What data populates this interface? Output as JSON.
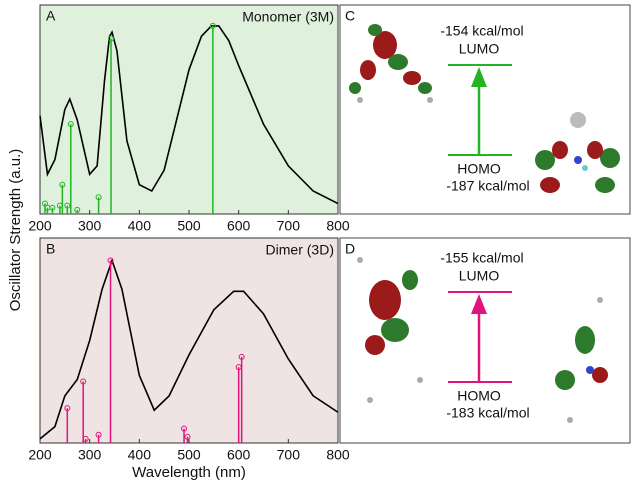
{
  "y_label": "Oscillator Strength (a.u.)",
  "chart_data": [
    {
      "type": "line",
      "label": "A",
      "title": "Monomer (3M)",
      "background": "#dff0dc",
      "xlim": [
        200,
        800
      ],
      "xticks": [
        200,
        300,
        400,
        500,
        600,
        700,
        800
      ],
      "ylim": [
        0,
        1
      ],
      "series": [
        {
          "style": "line",
          "color": "#000000",
          "x": [
            200,
            215,
            230,
            250,
            260,
            275,
            300,
            315,
            330,
            340,
            345,
            355,
            375,
            400,
            425,
            450,
            475,
            500,
            525,
            545,
            560,
            580,
            600,
            650,
            700,
            750,
            800
          ],
          "values": [
            0.47,
            0.19,
            0.26,
            0.5,
            0.55,
            0.45,
            0.19,
            0.23,
            0.64,
            0.85,
            0.87,
            0.78,
            0.35,
            0.14,
            0.11,
            0.21,
            0.45,
            0.69,
            0.85,
            0.9,
            0.9,
            0.83,
            0.71,
            0.43,
            0.23,
            0.11,
            0.05
          ]
        },
        {
          "style": "stem",
          "color": "#22b422",
          "x": [
            210,
            215,
            225,
            240,
            245,
            255,
            262,
            275,
            318,
            343,
            548
          ],
          "values": [
            0.05,
            0.03,
            0.03,
            0.04,
            0.14,
            0.04,
            0.43,
            0.02,
            0.08,
            0.84,
            0.9
          ]
        }
      ]
    },
    {
      "type": "line",
      "label": "B",
      "title": "Dimer (3D)",
      "background": "#f0e3e3",
      "xlabel": "Wavelength (nm)",
      "xlim": [
        200,
        800
      ],
      "xticks": [
        200,
        300,
        400,
        500,
        600,
        700,
        800
      ],
      "ylim": [
        0,
        1
      ],
      "series": [
        {
          "style": "line",
          "color": "#000000",
          "x": [
            200,
            230,
            250,
            275,
            300,
            325,
            345,
            365,
            400,
            430,
            460,
            500,
            550,
            590,
            610,
            650,
            700,
            750,
            800
          ],
          "values": [
            0.02,
            0.08,
            0.23,
            0.31,
            0.5,
            0.75,
            0.89,
            0.75,
            0.33,
            0.16,
            0.23,
            0.43,
            0.65,
            0.74,
            0.74,
            0.63,
            0.41,
            0.23,
            0.15
          ]
        },
        {
          "style": "stem",
          "color": "#e0147a",
          "x": [
            255,
            287,
            292,
            318,
            342,
            490,
            497,
            600,
            606
          ],
          "values": [
            0.17,
            0.3,
            0.02,
            0.04,
            0.89,
            0.07,
            0.03,
            0.37,
            0.42
          ]
        }
      ]
    }
  ],
  "diagrams": [
    {
      "label": "C",
      "lumo_energy": "-154 kcal/mol",
      "lumo": "LUMO",
      "homo": "HOMO",
      "homo_energy": "-187 kcal/mol",
      "color": "#22b422"
    },
    {
      "label": "D",
      "lumo_energy": "-155 kcal/mol",
      "lumo": "LUMO",
      "homo": "HOMO",
      "homo_energy": "-183 kcal/mol",
      "color": "#e0147a"
    }
  ]
}
